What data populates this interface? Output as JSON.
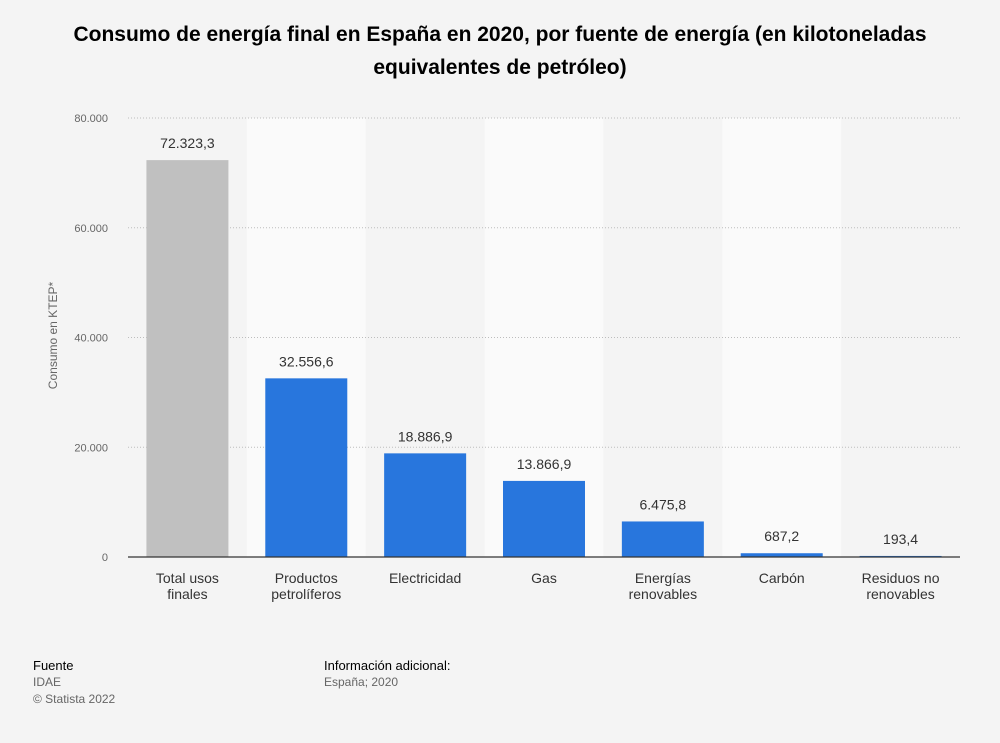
{
  "chart_data": {
    "type": "bar",
    "title": "Consumo de energía final en España en 2020, por fuente de energía (en kilotoneladas equivalentes de petróleo)",
    "ylabel": "Consumo en KTEP*",
    "xlabel": "",
    "ylim": [
      0,
      80000
    ],
    "yticks": [
      {
        "value": 0,
        "label": "0"
      },
      {
        "value": 20000,
        "label": "20.000"
      },
      {
        "value": 40000,
        "label": "40.000"
      },
      {
        "value": 60000,
        "label": "60.000"
      },
      {
        "value": 80000,
        "label": "80.000"
      }
    ],
    "grid": true,
    "categories": [
      [
        "Total usos",
        "finales"
      ],
      [
        "Productos",
        "petrolíferos"
      ],
      [
        "Electricidad"
      ],
      [
        "Gas"
      ],
      [
        "Energías",
        "renovables"
      ],
      [
        "Carbón"
      ],
      [
        "Residuos no",
        "renovables"
      ]
    ],
    "values": [
      72323.3,
      32556.6,
      18886.9,
      13866.9,
      6475.8,
      687.2,
      193.4
    ],
    "value_labels": [
      "72.323,3",
      "32.556,6",
      "18.886,9",
      "13.866,9",
      "6.475,8",
      "687,2",
      "193,4"
    ],
    "colors": [
      "#c0c0c0",
      "#2876dd",
      "#2876dd",
      "#2876dd",
      "#2876dd",
      "#2876dd",
      "#2876dd"
    ]
  },
  "footer": {
    "source_heading": "Fuente",
    "source": "IDAE",
    "copyright": "© Statista 2022",
    "info_heading": "Información adicional:",
    "info": "España; 2020"
  }
}
